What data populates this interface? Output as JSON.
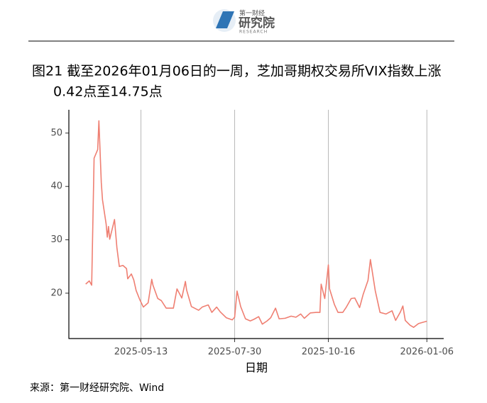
{
  "header": {
    "brand": "第一财经",
    "name": "研究院",
    "sub": "RESEARCH"
  },
  "chart_data": {
    "type": "line",
    "title": [
      "图21  截至2026年01月06日的一周，芝加哥期权交易所VIX指数上涨",
      "0.42点至14.75点"
    ],
    "x_label": "日期",
    "x": [
      "2025-03-28",
      "2025-03-31",
      "2025-04-02",
      "2025-04-04",
      "2025-04-07",
      "2025-04-08",
      "2025-04-10",
      "2025-04-11",
      "2025-04-14",
      "2025-04-15",
      "2025-04-16",
      "2025-04-17",
      "2025-04-21",
      "2025-04-23",
      "2025-04-25",
      "2025-04-28",
      "2025-05-01",
      "2025-05-02",
      "2025-05-05",
      "2025-05-07",
      "2025-05-09",
      "2025-05-12",
      "2025-05-15",
      "2025-05-19",
      "2025-05-22",
      "2025-05-23",
      "2025-05-27",
      "2025-05-30",
      "2025-06-03",
      "2025-06-09",
      "2025-06-12",
      "2025-06-16",
      "2025-06-19",
      "2025-06-20",
      "2025-06-24",
      "2025-06-30",
      "2025-07-03",
      "2025-07-08",
      "2025-07-11",
      "2025-07-15",
      "2025-07-18",
      "2025-07-23",
      "2025-07-28",
      "2025-07-30",
      "2025-08-01",
      "2025-08-04",
      "2025-08-08",
      "2025-08-12",
      "2025-08-15",
      "2025-08-19",
      "2025-08-22",
      "2025-08-26",
      "2025-08-29",
      "2025-09-02",
      "2025-09-05",
      "2025-09-10",
      "2025-09-15",
      "2025-09-19",
      "2025-09-23",
      "2025-09-26",
      "2025-10-01",
      "2025-10-06",
      "2025-10-09",
      "2025-10-10",
      "2025-10-13",
      "2025-10-16",
      "2025-10-17",
      "2025-10-21",
      "2025-10-24",
      "2025-10-28",
      "2025-10-31",
      "2025-11-04",
      "2025-11-07",
      "2025-11-11",
      "2025-11-14",
      "2025-11-18",
      "2025-11-20",
      "2025-11-24",
      "2025-11-28",
      "2025-12-03",
      "2025-12-08",
      "2025-12-11",
      "2025-12-15",
      "2025-12-17",
      "2025-12-19",
      "2025-12-23",
      "2025-12-26",
      "2025-12-30",
      "2026-01-02",
      "2026-01-06"
    ],
    "series": [
      {
        "color": "#ef7f72",
        "values": [
          21.7,
          22.3,
          21.5,
          45.3,
          46.9,
          52.3,
          40.7,
          37.5,
          33,
          30.5,
          32.5,
          30.1,
          33.8,
          28.5,
          25,
          25.2,
          24.6,
          22.7,
          23.6,
          22.5,
          20.5,
          18.8,
          17.4,
          18.2,
          22.6,
          21.5,
          19,
          18.6,
          17.2,
          17.2,
          20.8,
          19.1,
          22.2,
          20.6,
          17.5,
          16.8,
          17.4,
          17.8,
          16.4,
          17.4,
          16.5,
          15.4,
          15,
          15.5,
          20.4,
          17.5,
          15.2,
          14.8,
          15.1,
          15.6,
          14.2,
          14.8,
          15.4,
          17.2,
          15.2,
          15.3,
          15.7,
          15.5,
          16.1,
          15.3,
          16.3,
          16.4,
          16.4,
          21.7,
          19,
          25.3,
          20.8,
          17.9,
          16.4,
          16.4,
          17.4,
          19,
          19.1,
          17.3,
          19.8,
          22.4,
          26.3,
          20.5,
          16.4,
          16.1,
          16.7,
          14.9,
          16.5,
          17.6,
          14.9,
          14,
          13.6,
          14.3,
          14.5,
          14.75
        ]
      }
    ],
    "xlim": [
      "2025-03-14",
      "2026-01-20"
    ],
    "xticks": [
      "2025-05-13",
      "2025-07-30",
      "2025-10-16",
      "2026-01-06"
    ],
    "ylim": [
      11.5,
      53.7
    ],
    "yticks": [
      20,
      30,
      40,
      50
    ],
    "grid": "x"
  },
  "source": "来源：第一财经研究院、Wind"
}
